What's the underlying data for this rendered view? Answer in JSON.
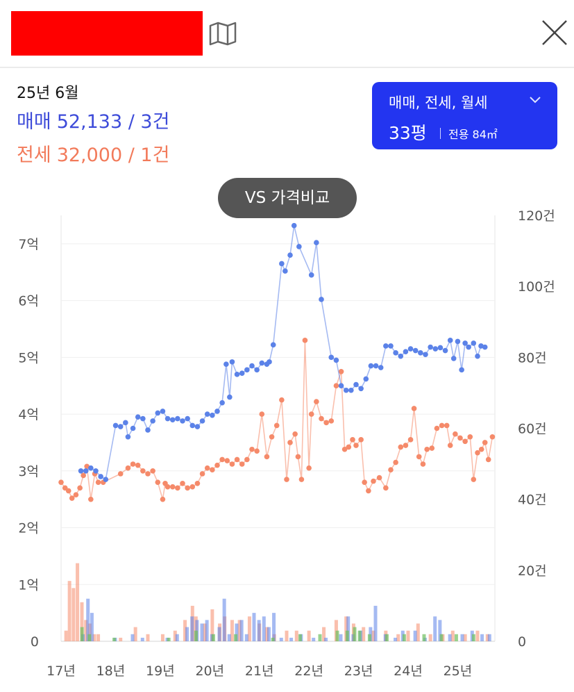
{
  "header": {
    "redacted_color": "#ff0000",
    "map_icon": "map-icon",
    "close_icon": "close-icon"
  },
  "summary": {
    "month": "25년 6월",
    "sale_label": "매매",
    "sale_value": "52,133 / 3건",
    "lease_label": "전세",
    "lease_value": "32,000 / 1건"
  },
  "filter": {
    "types": "매매, 전세, 월세",
    "size": "33평",
    "area": "전용 84㎡",
    "accent": "#2335f0"
  },
  "vs_button": {
    "label": "VS 가격비교"
  },
  "colors": {
    "sale": "#5b82e8",
    "lease": "#f58a6a",
    "monthly": "#6fbf5f",
    "sale_text": "#3d4bd9",
    "lease_text": "#f27a5a"
  },
  "chart_data": {
    "type": "line",
    "x_ticks": [
      "17년",
      "18년",
      "19년",
      "20년",
      "21년",
      "22년",
      "23년",
      "24년",
      "25년"
    ],
    "y_left_ticks": [
      "0",
      "1억",
      "2억",
      "3억",
      "4억",
      "5억",
      "6억",
      "7억"
    ],
    "y_right_ticks": [
      "0",
      "20건",
      "40건",
      "60건",
      "80건",
      "100건",
      "120건"
    ],
    "ylim_left": [
      0,
      7.5
    ],
    "ylim_right": [
      0,
      120
    ],
    "grid": true,
    "series": [
      {
        "name": "매매",
        "points": [
          [
            2017.4,
            3.0
          ],
          [
            2017.5,
            3.0
          ],
          [
            2017.6,
            3.05
          ],
          [
            2017.7,
            3.0
          ],
          [
            2017.8,
            2.9
          ],
          [
            2017.9,
            2.85
          ],
          [
            2018.1,
            3.8
          ],
          [
            2018.2,
            3.78
          ],
          [
            2018.3,
            3.85
          ],
          [
            2018.35,
            3.6
          ],
          [
            2018.45,
            3.75
          ],
          [
            2018.55,
            3.95
          ],
          [
            2018.65,
            3.92
          ],
          [
            2018.75,
            3.72
          ],
          [
            2018.85,
            3.88
          ],
          [
            2018.95,
            4.02
          ],
          [
            2019.05,
            4.05
          ],
          [
            2019.15,
            3.92
          ],
          [
            2019.25,
            3.9
          ],
          [
            2019.35,
            3.92
          ],
          [
            2019.45,
            3.88
          ],
          [
            2019.55,
            3.92
          ],
          [
            2019.65,
            3.8
          ],
          [
            2019.75,
            3.78
          ],
          [
            2019.85,
            3.88
          ],
          [
            2019.95,
            4.0
          ],
          [
            2020.05,
            3.98
          ],
          [
            2020.15,
            4.05
          ],
          [
            2020.25,
            4.2
          ],
          [
            2020.33,
            4.88
          ],
          [
            2020.4,
            4.3
          ],
          [
            2020.45,
            4.92
          ],
          [
            2020.55,
            4.7
          ],
          [
            2020.65,
            4.72
          ],
          [
            2020.75,
            4.78
          ],
          [
            2020.85,
            4.85
          ],
          [
            2020.95,
            4.78
          ],
          [
            2021.05,
            4.9
          ],
          [
            2021.15,
            4.88
          ],
          [
            2021.2,
            4.92
          ],
          [
            2021.28,
            5.22
          ],
          [
            2021.45,
            6.65
          ],
          [
            2021.52,
            6.52
          ],
          [
            2021.62,
            6.8
          ],
          [
            2021.7,
            7.32
          ],
          [
            2021.8,
            6.95
          ],
          [
            2022.05,
            6.45
          ],
          [
            2022.15,
            7.02
          ],
          [
            2022.25,
            6.02
          ],
          [
            2022.45,
            5.0
          ],
          [
            2022.55,
            4.95
          ],
          [
            2022.65,
            4.5
          ],
          [
            2022.75,
            4.42
          ],
          [
            2022.85,
            4.42
          ],
          [
            2022.95,
            4.52
          ],
          [
            2023.05,
            4.45
          ],
          [
            2023.15,
            4.62
          ],
          [
            2023.25,
            4.85
          ],
          [
            2023.35,
            4.85
          ],
          [
            2023.45,
            4.82
          ],
          [
            2023.55,
            5.2
          ],
          [
            2023.65,
            5.2
          ],
          [
            2023.75,
            5.08
          ],
          [
            2023.85,
            5.02
          ],
          [
            2023.95,
            5.1
          ],
          [
            2024.05,
            5.15
          ],
          [
            2024.15,
            5.12
          ],
          [
            2024.25,
            5.08
          ],
          [
            2024.35,
            5.05
          ],
          [
            2024.45,
            5.18
          ],
          [
            2024.55,
            5.15
          ],
          [
            2024.65,
            5.17
          ],
          [
            2024.75,
            5.12
          ],
          [
            2024.85,
            5.3
          ],
          [
            2024.92,
            4.98
          ],
          [
            2025.0,
            5.28
          ],
          [
            2025.08,
            4.78
          ],
          [
            2025.15,
            5.25
          ],
          [
            2025.22,
            5.18
          ],
          [
            2025.32,
            5.25
          ],
          [
            2025.4,
            5.02
          ],
          [
            2025.47,
            5.2
          ],
          [
            2025.55,
            5.18
          ]
        ]
      },
      {
        "name": "전세",
        "points": [
          [
            2017.0,
            2.8
          ],
          [
            2017.08,
            2.7
          ],
          [
            2017.15,
            2.65
          ],
          [
            2017.22,
            2.52
          ],
          [
            2017.3,
            2.58
          ],
          [
            2017.38,
            2.7
          ],
          [
            2017.45,
            2.92
          ],
          [
            2017.52,
            3.08
          ],
          [
            2017.6,
            2.5
          ],
          [
            2017.68,
            2.95
          ],
          [
            2017.75,
            2.8
          ],
          [
            2017.85,
            2.8
          ],
          [
            2018.2,
            2.95
          ],
          [
            2018.35,
            3.05
          ],
          [
            2018.45,
            3.12
          ],
          [
            2018.55,
            3.1
          ],
          [
            2018.65,
            3.0
          ],
          [
            2018.75,
            2.95
          ],
          [
            2018.85,
            3.0
          ],
          [
            2018.95,
            2.8
          ],
          [
            2019.05,
            2.5
          ],
          [
            2019.1,
            2.78
          ],
          [
            2019.15,
            2.72
          ],
          [
            2019.25,
            2.72
          ],
          [
            2019.35,
            2.7
          ],
          [
            2019.45,
            2.78
          ],
          [
            2019.55,
            2.7
          ],
          [
            2019.65,
            2.72
          ],
          [
            2019.75,
            2.78
          ],
          [
            2019.85,
            2.95
          ],
          [
            2019.95,
            3.05
          ],
          [
            2020.05,
            3.02
          ],
          [
            2020.15,
            3.1
          ],
          [
            2020.25,
            3.2
          ],
          [
            2020.35,
            3.18
          ],
          [
            2020.45,
            3.12
          ],
          [
            2020.55,
            3.2
          ],
          [
            2020.65,
            3.12
          ],
          [
            2020.75,
            3.2
          ],
          [
            2020.85,
            3.38
          ],
          [
            2020.95,
            3.35
          ],
          [
            2021.05,
            4.0
          ],
          [
            2021.15,
            3.25
          ],
          [
            2021.25,
            3.6
          ],
          [
            2021.35,
            3.8
          ],
          [
            2021.45,
            4.25
          ],
          [
            2021.55,
            2.85
          ],
          [
            2021.62,
            3.5
          ],
          [
            2021.72,
            3.65
          ],
          [
            2021.78,
            3.25
          ],
          [
            2021.85,
            2.85
          ],
          [
            2021.92,
            5.3
          ],
          [
            2022.0,
            3.05
          ],
          [
            2022.05,
            4.0
          ],
          [
            2022.15,
            4.22
          ],
          [
            2022.25,
            3.92
          ],
          [
            2022.35,
            3.85
          ],
          [
            2022.45,
            3.88
          ],
          [
            2022.55,
            4.5
          ],
          [
            2022.65,
            4.75
          ],
          [
            2022.72,
            3.38
          ],
          [
            2022.8,
            3.42
          ],
          [
            2022.88,
            3.55
          ],
          [
            2022.95,
            3.45
          ],
          [
            2023.05,
            3.55
          ],
          [
            2023.12,
            2.8
          ],
          [
            2023.2,
            2.65
          ],
          [
            2023.3,
            2.82
          ],
          [
            2023.42,
            2.88
          ],
          [
            2023.55,
            2.7
          ],
          [
            2023.65,
            3.02
          ],
          [
            2023.75,
            3.15
          ],
          [
            2023.85,
            3.42
          ],
          [
            2023.95,
            3.45
          ],
          [
            2024.05,
            3.55
          ],
          [
            2024.12,
            4.1
          ],
          [
            2024.22,
            3.25
          ],
          [
            2024.3,
            3.12
          ],
          [
            2024.38,
            3.38
          ],
          [
            2024.48,
            3.4
          ],
          [
            2024.58,
            3.75
          ],
          [
            2024.68,
            3.8
          ],
          [
            2024.78,
            3.8
          ],
          [
            2024.85,
            3.45
          ],
          [
            2024.95,
            3.65
          ],
          [
            2025.05,
            3.58
          ],
          [
            2025.15,
            3.52
          ],
          [
            2025.25,
            3.6
          ],
          [
            2025.32,
            2.85
          ],
          [
            2025.4,
            3.32
          ],
          [
            2025.48,
            3.38
          ],
          [
            2025.55,
            3.5
          ],
          [
            2025.62,
            3.2
          ],
          [
            2025.7,
            3.6
          ]
        ]
      },
      {
        "name": "",
        "bars": [
          [
            2017.1,
            3
          ],
          [
            2017.17,
            17
          ],
          [
            2017.25,
            15
          ],
          [
            2017.33,
            22
          ],
          [
            2017.42,
            11
          ],
          [
            2017.5,
            6
          ],
          [
            2017.58,
            5
          ],
          [
            2017.67,
            2
          ],
          [
            2017.75,
            2
          ],
          [
            2018.2,
            1
          ],
          [
            2018.5,
            4
          ],
          [
            2018.75,
            2
          ],
          [
            2019.05,
            2
          ],
          [
            2019.3,
            3
          ],
          [
            2019.5,
            6
          ],
          [
            2019.65,
            10
          ],
          [
            2019.72,
            7
          ],
          [
            2019.9,
            5
          ],
          [
            2020.05,
            9
          ],
          [
            2020.2,
            5
          ],
          [
            2020.3,
            7
          ],
          [
            2020.45,
            6
          ],
          [
            2020.6,
            6
          ],
          [
            2020.8,
            7
          ],
          [
            2021.0,
            5
          ],
          [
            2021.15,
            4
          ],
          [
            2021.3,
            2
          ],
          [
            2021.55,
            3
          ],
          [
            2021.75,
            3
          ],
          [
            2022.0,
            3
          ],
          [
            2022.3,
            4
          ],
          [
            2022.55,
            6
          ],
          [
            2022.75,
            7
          ],
          [
            2022.9,
            5
          ],
          [
            2023.1,
            4
          ],
          [
            2023.3,
            3
          ],
          [
            2023.55,
            3
          ],
          [
            2023.8,
            2
          ],
          [
            2024.0,
            3
          ],
          [
            2024.2,
            5
          ],
          [
            2024.45,
            2
          ],
          [
            2024.7,
            2
          ],
          [
            2024.9,
            3
          ],
          [
            2025.15,
            2
          ],
          [
            2025.4,
            3
          ],
          [
            2025.6,
            2
          ]
        ]
      }
    ],
    "sale_volume": [
      [
        2017.4,
        2
      ],
      [
        2017.5,
        12
      ],
      [
        2017.58,
        8
      ],
      [
        2018.05,
        1
      ],
      [
        2018.4,
        2
      ],
      [
        2018.6,
        1
      ],
      [
        2019.1,
        1
      ],
      [
        2019.3,
        2
      ],
      [
        2019.5,
        4
      ],
      [
        2019.6,
        7
      ],
      [
        2019.7,
        6
      ],
      [
        2019.8,
        5
      ],
      [
        2019.9,
        6
      ],
      [
        2020.0,
        2
      ],
      [
        2020.15,
        4
      ],
      [
        2020.25,
        12
      ],
      [
        2020.35,
        2
      ],
      [
        2020.5,
        5
      ],
      [
        2020.6,
        6
      ],
      [
        2020.7,
        2
      ],
      [
        2020.85,
        8
      ],
      [
        2020.95,
        6
      ],
      [
        2021.05,
        7
      ],
      [
        2021.15,
        4
      ],
      [
        2021.25,
        8
      ],
      [
        2021.4,
        1
      ],
      [
        2021.6,
        1
      ],
      [
        2021.8,
        2
      ],
      [
        2022.05,
        1
      ],
      [
        2022.3,
        1
      ],
      [
        2022.6,
        2
      ],
      [
        2022.75,
        7
      ],
      [
        2022.85,
        2
      ],
      [
        2023.0,
        3
      ],
      [
        2023.2,
        4
      ],
      [
        2023.3,
        10
      ],
      [
        2023.5,
        2
      ],
      [
        2023.7,
        1
      ],
      [
        2023.85,
        3
      ],
      [
        2024.1,
        3
      ],
      [
        2024.3,
        1
      ],
      [
        2024.5,
        7
      ],
      [
        2024.6,
        6
      ],
      [
        2024.8,
        2
      ],
      [
        2025.05,
        2
      ],
      [
        2025.25,
        3
      ],
      [
        2025.45,
        2
      ],
      [
        2025.6,
        2
      ]
    ],
    "monthly_volume": [
      [
        2017.45,
        4
      ],
      [
        2017.6,
        2
      ],
      [
        2018.1,
        1
      ],
      [
        2019.2,
        1
      ],
      [
        2019.75,
        3
      ],
      [
        2020.1,
        2
      ],
      [
        2020.55,
        2
      ],
      [
        2021.3,
        1
      ],
      [
        2021.85,
        2
      ],
      [
        2022.25,
        2
      ],
      [
        2022.6,
        3
      ],
      [
        2022.8,
        3
      ],
      [
        2022.95,
        4
      ],
      [
        2023.05,
        3
      ],
      [
        2023.25,
        2
      ],
      [
        2023.6,
        2
      ],
      [
        2023.95,
        2
      ],
      [
        2024.35,
        2
      ],
      [
        2024.7,
        2
      ],
      [
        2025.0,
        2
      ],
      [
        2025.35,
        2
      ]
    ]
  }
}
